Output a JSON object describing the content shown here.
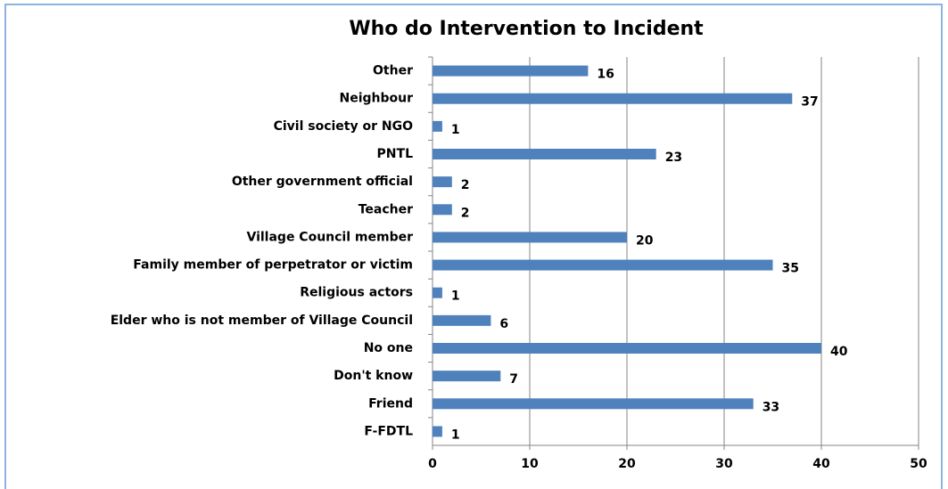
{
  "chart_data": {
    "type": "hbar",
    "title": "Who do Intervention to Incident",
    "categories": [
      "Other",
      "Neighbour",
      "Civil society or NGO",
      "PNTL",
      "Other government official",
      "Teacher",
      "Village Council member",
      "Family member of perpetrator or victim",
      "Religious actors",
      "Elder who is not member of Village Council",
      "No one",
      "Don't know",
      "Friend",
      "F-FDTL"
    ],
    "values": [
      16,
      37,
      1,
      23,
      2,
      2,
      20,
      35,
      1,
      6,
      40,
      7,
      33,
      1
    ],
    "color": "#4f81bd",
    "xlim": [
      0,
      50
    ],
    "xticks": [
      0,
      10,
      20,
      30,
      40,
      50
    ],
    "grid": true
  }
}
